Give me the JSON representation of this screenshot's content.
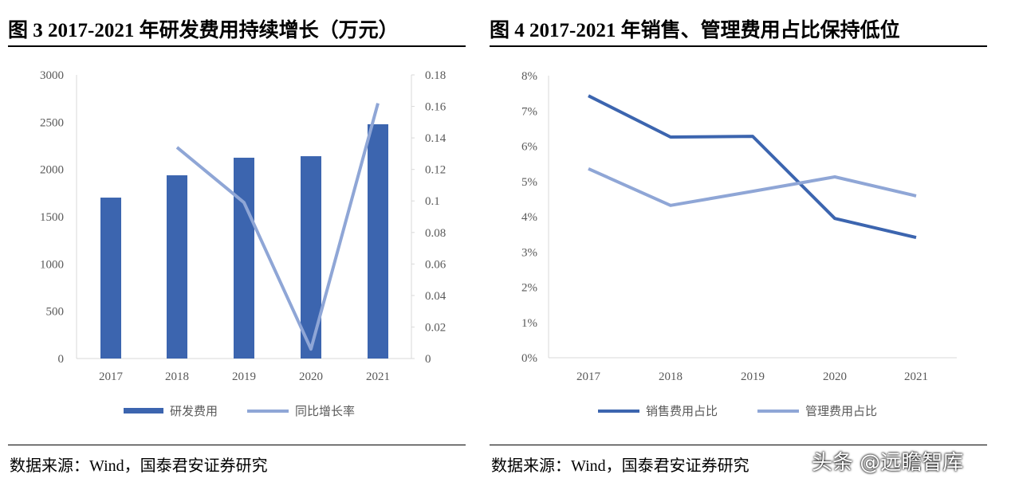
{
  "left": {
    "title": "图 3 2017-2021 年研发费用持续增长（万元）",
    "source": "数据来源：Wind，国泰君安证券研究"
  },
  "right": {
    "title": "图 4 2017-2021 年销售、管理费用占比保持低位",
    "source": "数据来源：Wind，国泰君安证券研究"
  },
  "watermark": "头条 @远瞻智库",
  "chart_data": [
    {
      "type": "bar+line",
      "categories": [
        "2017",
        "2018",
        "2019",
        "2020",
        "2021"
      ],
      "ylim": [
        0,
        3000
      ],
      "yticks": [
        "0",
        "500",
        "1000",
        "1500",
        "2000",
        "2500",
        "3000"
      ],
      "y2lim": [
        0,
        0.18
      ],
      "y2ticks": [
        "0",
        "0.02",
        "0.04",
        "0.06",
        "0.08",
        "0.1",
        "0.12",
        "0.14",
        "0.16",
        "0.18"
      ],
      "series": [
        {
          "name": "研发费用",
          "type": "bar",
          "axis": "left",
          "color": "#3C65AF",
          "values": [
            1702,
            1938,
            2124,
            2140,
            2478
          ]
        },
        {
          "name": "同比增长率",
          "type": "line",
          "axis": "right",
          "color": "#8FA6D6",
          "values": [
            null,
            0.134,
            0.099,
            0.006,
            0.162
          ]
        }
      ],
      "legend": "bottom"
    },
    {
      "type": "line",
      "categories": [
        "2017",
        "2018",
        "2019",
        "2020",
        "2021"
      ],
      "ylim": [
        0,
        0.08
      ],
      "yticks": [
        "0%",
        "1%",
        "2%",
        "3%",
        "4%",
        "5%",
        "6%",
        "7%",
        "8%"
      ],
      "series": [
        {
          "name": "销售费用占比",
          "color": "#3C65AF",
          "values": [
            0.0743,
            0.0626,
            0.0628,
            0.0395,
            0.0341
          ]
        },
        {
          "name": "管理费用占比",
          "color": "#8FA6D6",
          "values": [
            0.0536,
            0.0432,
            0.0472,
            0.0513,
            0.0459
          ]
        }
      ],
      "legend": "bottom"
    }
  ]
}
